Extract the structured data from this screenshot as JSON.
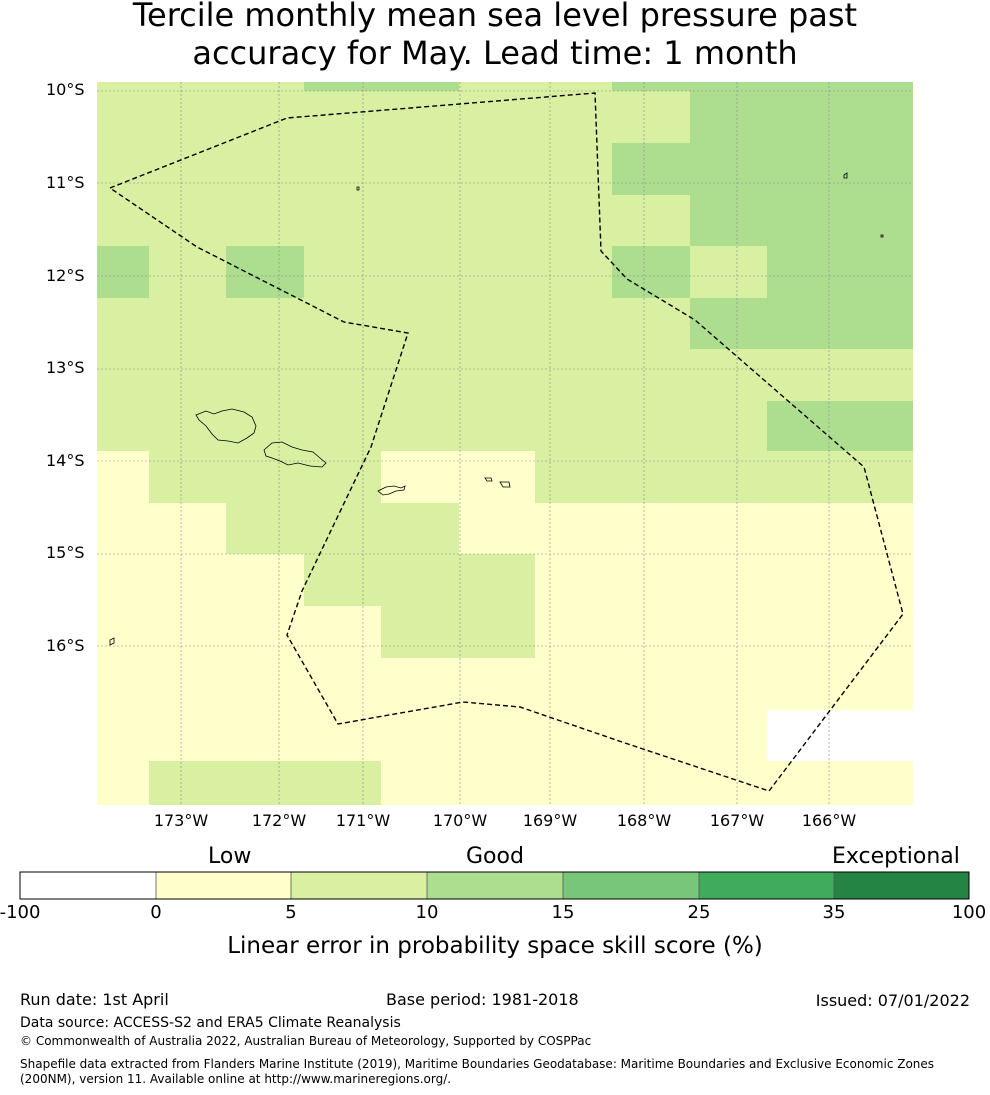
{
  "title": {
    "line1": "Tercile monthly mean sea level pressure past",
    "line2": "accuracy for May. Lead time: 1 month"
  },
  "map": {
    "lat_labels": [
      "10°S",
      "11°S",
      "12°S",
      "13°S",
      "14°S",
      "15°S",
      "16°S"
    ],
    "lon_labels": [
      "173°W",
      "172°W",
      "171°W",
      "170°W",
      "169°W",
      "168°W",
      "167°W",
      "166°W"
    ],
    "cell_colors": {
      "negative": "#ffffff",
      "low": "#ffffcc",
      "fair": "#d9f0a3",
      "good": "#addd8e",
      "good_high": "#78c679",
      "very_good": "#41ab5d",
      "exceptional": "#238443"
    }
  },
  "colorbar": {
    "categories": [
      "Low",
      "Good",
      "Exceptional"
    ],
    "ticks": [
      "-100",
      "0",
      "5",
      "10",
      "15",
      "25",
      "35",
      "100"
    ],
    "colors": [
      "#ffffff",
      "#ffffcc",
      "#d9f0a3",
      "#addd8e",
      "#78c679",
      "#41ab5d",
      "#238443"
    ],
    "label": "Linear error in probability space skill score (%)"
  },
  "footer": {
    "run_date": "Run date: 1st April",
    "base_period": "Base period: 1981-2018",
    "issued": "Issued: 07/01/2022",
    "data_source": "Data source: ACCESS-S2 and ERA5 Climate Reanalysis",
    "copyright": "© Commonwealth of Australia 2022, Australian Bureau of Meteorology, Supported by COSPPac",
    "shapefile_line1": "Shapefile data extracted from Flanders Marine Institute (2019), Maritime Boundaries Geodatabase: Maritime Boundaries and Exclusive Economic Zones",
    "shapefile_line2": "(200NM), version 11. Available online at http://www.marineregions.org/."
  }
}
